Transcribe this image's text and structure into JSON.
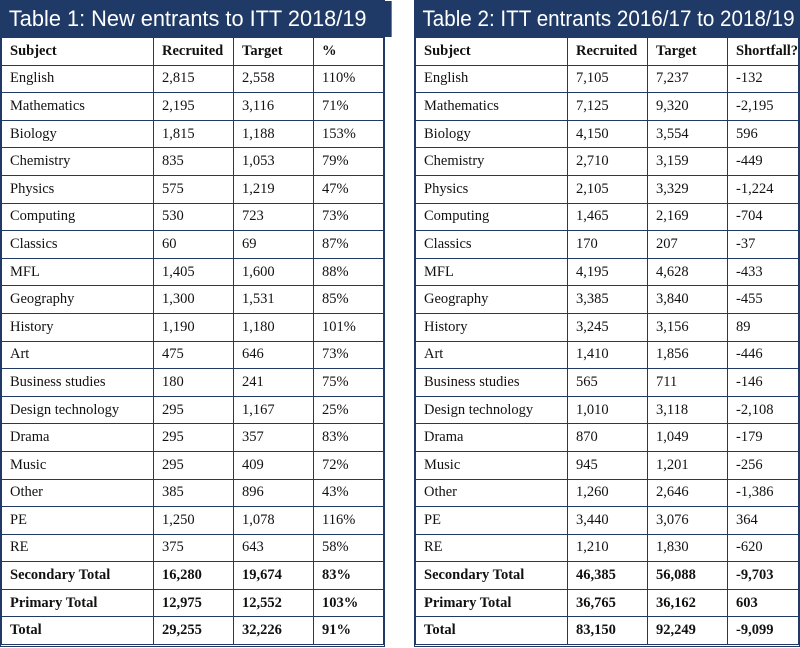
{
  "table1": {
    "title": "Table 1: New entrants to ITT 2018/19",
    "headers": [
      "Subject",
      "Recruited",
      "Target",
      "%"
    ],
    "rows": [
      [
        "English",
        "2,815",
        "2,558",
        "110%"
      ],
      [
        "Mathematics",
        "2,195",
        "3,116",
        "71%"
      ],
      [
        "Biology",
        "1,815",
        "1,188",
        "153%"
      ],
      [
        "Chemistry",
        "835",
        "1,053",
        "79%"
      ],
      [
        "Physics",
        "575",
        "1,219",
        "47%"
      ],
      [
        "Computing",
        "530",
        "723",
        "73%"
      ],
      [
        "Classics",
        "60",
        "69",
        "87%"
      ],
      [
        "MFL",
        "1,405",
        "1,600",
        "88%"
      ],
      [
        "Geography",
        "1,300",
        "1,531",
        "85%"
      ],
      [
        "History",
        "1,190",
        "1,180",
        "101%"
      ],
      [
        "Art",
        "475",
        "646",
        "73%"
      ],
      [
        "Business studies",
        "180",
        "241",
        "75%"
      ],
      [
        "Design technology",
        "295",
        "1,167",
        "25%"
      ],
      [
        "Drama",
        "295",
        "357",
        "83%"
      ],
      [
        "Music",
        "295",
        "409",
        "72%"
      ],
      [
        "Other",
        "385",
        "896",
        "43%"
      ],
      [
        "PE",
        "1,250",
        "1,078",
        "116%"
      ],
      [
        "RE",
        "375",
        "643",
        "58%"
      ]
    ],
    "totals": [
      [
        "Secondary Total",
        "16,280",
        "19,674",
        "83%"
      ],
      [
        "Primary Total",
        "12,975",
        "12,552",
        "103%"
      ],
      [
        "Total",
        "29,255",
        "32,226",
        "91%"
      ]
    ]
  },
  "table2": {
    "title": "Table 2: ITT entrants 2016/17 to 2018/19",
    "headers": [
      "Subject",
      "Recruited",
      "Target",
      "Shortfall?"
    ],
    "rows": [
      [
        "English",
        "7,105",
        "7,237",
        "-132"
      ],
      [
        "Mathematics",
        "7,125",
        "9,320",
        "-2,195"
      ],
      [
        "Biology",
        "4,150",
        "3,554",
        "596"
      ],
      [
        "Chemistry",
        "2,710",
        "3,159",
        "-449"
      ],
      [
        "Physics",
        "2,105",
        "3,329",
        "-1,224"
      ],
      [
        "Computing",
        "1,465",
        "2,169",
        "-704"
      ],
      [
        "Classics",
        "170",
        "207",
        "-37"
      ],
      [
        "MFL",
        "4,195",
        "4,628",
        "-433"
      ],
      [
        "Geography",
        "3,385",
        "3,840",
        "-455"
      ],
      [
        "History",
        "3,245",
        "3,156",
        "89"
      ],
      [
        "Art",
        "1,410",
        "1,856",
        "-446"
      ],
      [
        "Business studies",
        "565",
        "711",
        "-146"
      ],
      [
        "Design technology",
        "1,010",
        "3,118",
        "-2,108"
      ],
      [
        "Drama",
        "870",
        "1,049",
        "-179"
      ],
      [
        "Music",
        "945",
        "1,201",
        "-256"
      ],
      [
        "Other",
        "1,260",
        "2,646",
        "-1,386"
      ],
      [
        "PE",
        "3,440",
        "3,076",
        "364"
      ],
      [
        "RE",
        "1,210",
        "1,830",
        "-620"
      ]
    ],
    "totals": [
      [
        "Secondary Total",
        "46,385",
        "56,088",
        "-9,703"
      ],
      [
        "Primary Total",
        "36,765",
        "36,162",
        "603"
      ],
      [
        "Total",
        "83,150",
        "92,249",
        "-9,099"
      ]
    ]
  },
  "colors": {
    "border": "#1f3a66",
    "title_bg": "#1f3a66",
    "title_text": "#ffffff"
  }
}
